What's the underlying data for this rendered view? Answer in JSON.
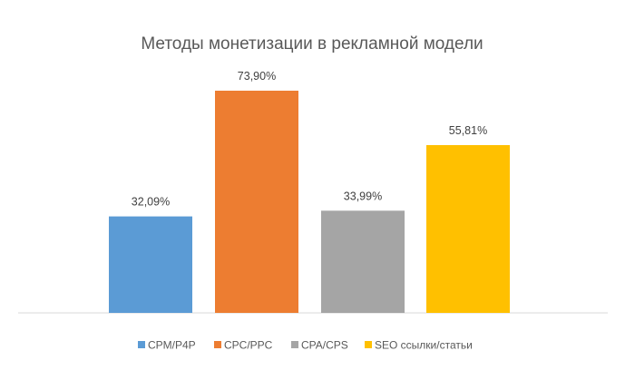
{
  "chart_data": {
    "type": "bar",
    "title": "Методы монетизации в рекламной модели",
    "categories": [
      "CPM/P4P",
      "CPC/PPC",
      "CPA/CPS",
      "SEO ссылки/статьи"
    ],
    "values": [
      32.09,
      73.9,
      33.99,
      55.81
    ],
    "data_labels": [
      "32,09%",
      "73,90%",
      "33,99%",
      "55,81%"
    ],
    "colors": [
      "#5B9BD5",
      "#ED7D31",
      "#A5A5A5",
      "#FFC000"
    ],
    "xlabel": "",
    "ylabel": "",
    "ylim": [
      0,
      80
    ],
    "grid": false,
    "legend": "bottom"
  }
}
